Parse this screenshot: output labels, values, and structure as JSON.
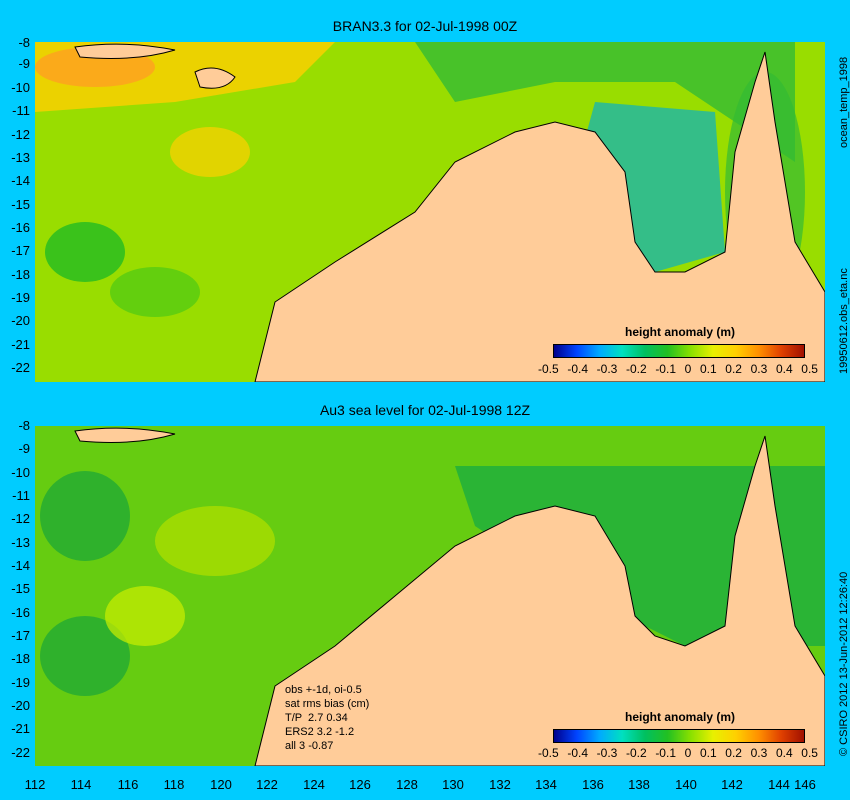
{
  "top_panel": {
    "title": "BRAN3.3 for 02-Jul-1998 00Z",
    "side_label": "ocean_temp_1998",
    "side_label_2": "19950612.obs_eta.nc"
  },
  "bottom_panel": {
    "title": "Au3 sea level  for 02-Jul-1998 12Z",
    "side_label": "© CSIRO 2012  13-Jun-2012 12:26:40",
    "notes": [
      "obs +-1d, oi-0.5",
      "sat rms bias (cm)",
      "T/P  2.7 0.34",
      "ERS2 3.2 -1.2",
      "all 3 -0.87"
    ]
  },
  "colorbar": {
    "title": "height anomaly (m)",
    "labels": [
      "-0.5",
      "-0.4",
      "-0.3",
      "-0.2",
      "-0.1",
      "0",
      "0.1",
      "0.2",
      "0.3",
      "0.4",
      "0.5"
    ]
  },
  "axes": {
    "y_labels": [
      "-8",
      "-9",
      "-10",
      "-11",
      "-12",
      "-13",
      "-14",
      "-15",
      "-16",
      "-17",
      "-18",
      "-19",
      "-20",
      "-21",
      "-22"
    ],
    "x_labels": [
      "112",
      "114",
      "116",
      "118",
      "120",
      "122",
      "124",
      "126",
      "128",
      "130",
      "132",
      "134",
      "136",
      "138",
      "140",
      "142",
      "144",
      "146"
    ]
  },
  "colors": {
    "background": "#00ccff",
    "land": "#ffcc99",
    "ocean_base": "#88dd00"
  }
}
